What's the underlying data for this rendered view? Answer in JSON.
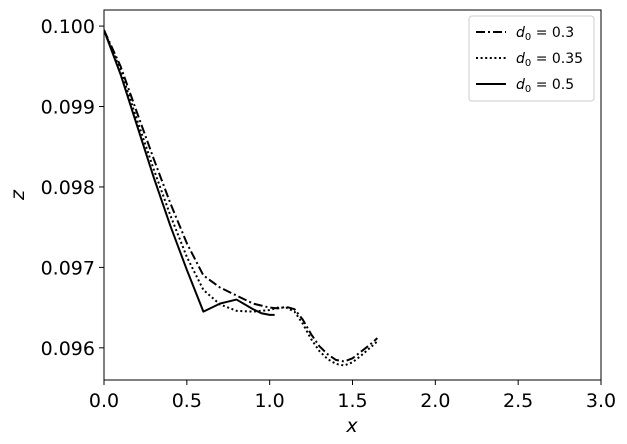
{
  "chart_data": {
    "type": "line",
    "xlabel": "x",
    "ylabel": "z",
    "xlim": [
      0.0,
      3.0
    ],
    "ylim": [
      0.0956,
      0.1002
    ],
    "xticks": [
      0.0,
      0.5,
      1.0,
      1.5,
      2.0,
      2.5,
      3.0
    ],
    "xtick_labels": [
      "0.0",
      "0.5",
      "1.0",
      "1.5",
      "2.0",
      "2.5",
      "3.0"
    ],
    "yticks": [
      0.096,
      0.097,
      0.098,
      0.099,
      0.1
    ],
    "ytick_labels": [
      "0.096",
      "0.097",
      "0.098",
      "0.099",
      "0.100"
    ],
    "grid": false,
    "legend_position": "top-right",
    "series": [
      {
        "name": "d0 = 0.3",
        "legend": {
          "base": "d",
          "sub": "0",
          "rest": " = 0.3"
        },
        "style": "dashdot",
        "color": "#000000",
        "x": [
          0.0,
          0.1,
          0.2,
          0.3,
          0.4,
          0.5,
          0.6,
          0.7,
          0.8,
          0.9,
          1.0,
          1.05,
          1.1,
          1.15,
          1.2,
          1.25,
          1.3,
          1.35,
          1.4,
          1.45,
          1.5,
          1.55,
          1.6,
          1.65
        ],
        "y": [
          0.09995,
          0.0995,
          0.09892,
          0.09835,
          0.0978,
          0.0973,
          0.0969,
          0.09675,
          0.09665,
          0.09655,
          0.0965,
          0.09649,
          0.09651,
          0.09648,
          0.09635,
          0.09617,
          0.09602,
          0.09592,
          0.09585,
          0.09583,
          0.09587,
          0.09595,
          0.09603,
          0.09612
        ]
      },
      {
        "name": "d0 = 0.35",
        "legend": {
          "base": "d",
          "sub": "0",
          "rest": " = 0.35"
        },
        "style": "dotted",
        "color": "#000000",
        "x": [
          0.0,
          0.1,
          0.2,
          0.3,
          0.4,
          0.5,
          0.6,
          0.7,
          0.8,
          0.9,
          1.0,
          1.05,
          1.1,
          1.15,
          1.2,
          1.25,
          1.3,
          1.35,
          1.4,
          1.45,
          1.5,
          1.55,
          1.6,
          1.65
        ],
        "y": [
          0.09995,
          0.09945,
          0.09883,
          0.09822,
          0.09765,
          0.09713,
          0.09672,
          0.09654,
          0.09646,
          0.09645,
          0.09647,
          0.0965,
          0.0965,
          0.09645,
          0.0963,
          0.09611,
          0.09596,
          0.09586,
          0.0958,
          0.09578,
          0.09582,
          0.0959,
          0.09599,
          0.09608
        ]
      },
      {
        "name": "d0 = 0.5",
        "legend": {
          "base": "d",
          "sub": "0",
          "rest": " = 0.5"
        },
        "style": "solid",
        "color": "#000000",
        "x": [
          0.0,
          0.1,
          0.2,
          0.3,
          0.4,
          0.5,
          0.6,
          0.7,
          0.8,
          0.9,
          0.95,
          1.0,
          1.03
        ],
        "y": [
          0.09995,
          0.0994,
          0.09876,
          0.09812,
          0.09752,
          0.09697,
          0.09645,
          0.09655,
          0.0966,
          0.09648,
          0.09643,
          0.09641,
          0.09641
        ]
      }
    ]
  }
}
